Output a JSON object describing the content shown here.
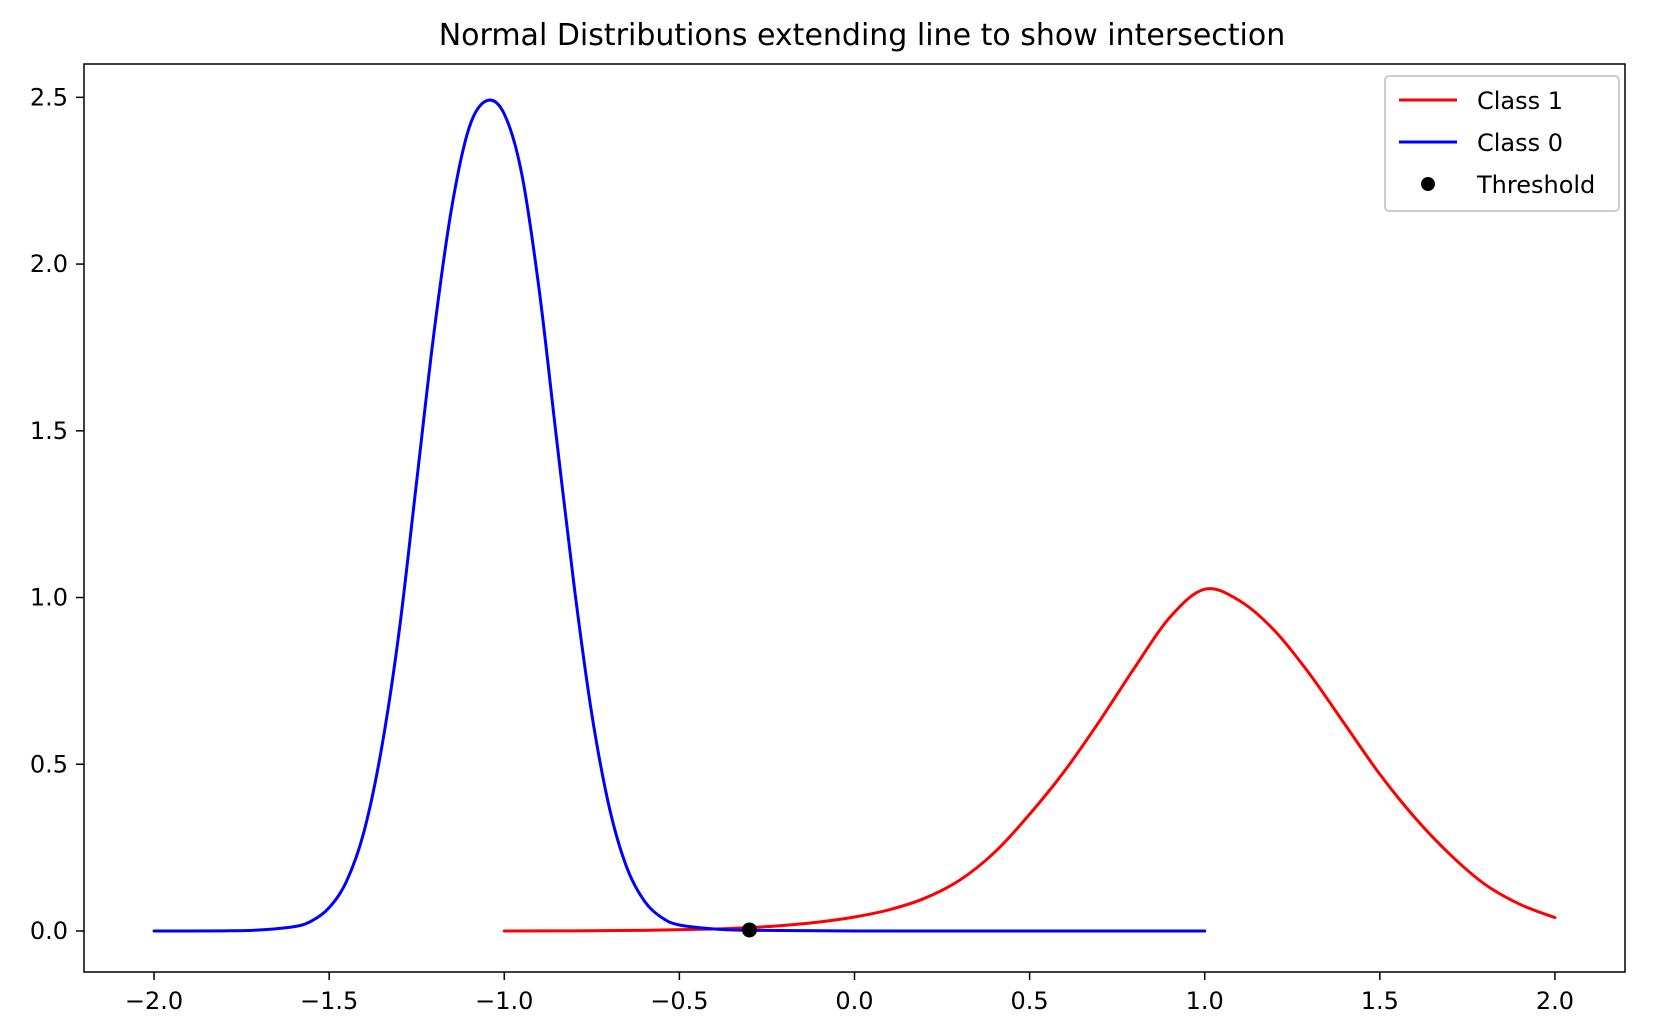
{
  "chart_data": {
    "type": "line",
    "title": "Normal Distributions extending line to show intersection",
    "xlabel": "",
    "ylabel": "",
    "xlim": [
      -2.2,
      2.2
    ],
    "ylim": [
      -0.123,
      2.6
    ],
    "x_ticks": [
      -2.0,
      -1.5,
      -1.0,
      -0.5,
      0.0,
      0.5,
      1.0,
      1.5,
      2.0
    ],
    "x_tick_labels": [
      "−2.0",
      "−1.5",
      "−1.0",
      "−0.5",
      "0.0",
      "0.5",
      "1.0",
      "1.5",
      "2.0"
    ],
    "y_ticks": [
      0.0,
      0.5,
      1.0,
      1.5,
      2.0,
      2.5
    ],
    "y_tick_labels": [
      "0.0",
      "0.5",
      "1.0",
      "1.5",
      "2.0",
      "2.5"
    ],
    "grid": false,
    "legend": {
      "position": "top-right",
      "entries": [
        "Class 1",
        "Class 0",
        "Threshold"
      ]
    },
    "series": [
      {
        "name": "Class 1",
        "kind": "line",
        "color": "#ff0000",
        "x": [
          -1.0,
          -0.8,
          -0.6,
          -0.4,
          -0.3,
          -0.2,
          -0.1,
          0.0,
          0.1,
          0.2,
          0.3,
          0.4,
          0.5,
          0.6,
          0.7,
          0.8,
          0.9,
          1.0,
          1.1,
          1.2,
          1.3,
          1.4,
          1.5,
          1.6,
          1.7,
          1.8,
          1.9,
          2.0
        ],
        "y": [
          0.0,
          0.0005,
          0.002,
          0.006,
          0.01,
          0.017,
          0.027,
          0.042,
          0.064,
          0.098,
          0.152,
          0.236,
          0.35,
          0.48,
          0.63,
          0.79,
          0.94,
          1.025,
          0.99,
          0.9,
          0.77,
          0.62,
          0.47,
          0.34,
          0.23,
          0.14,
          0.08,
          0.04
        ]
      },
      {
        "name": "Class 0",
        "kind": "line",
        "color": "#0000ff",
        "x": [
          -2.0,
          -1.8,
          -1.7,
          -1.6,
          -1.55,
          -1.5,
          -1.45,
          -1.4,
          -1.35,
          -1.3,
          -1.25,
          -1.2,
          -1.15,
          -1.1,
          -1.05,
          -1.0,
          -0.95,
          -0.9,
          -0.85,
          -0.8,
          -0.75,
          -0.7,
          -0.65,
          -0.6,
          -0.55,
          -0.5,
          -0.4,
          -0.3,
          0.0,
          0.5,
          1.0
        ],
        "y": [
          0.0,
          0.0005,
          0.003,
          0.013,
          0.03,
          0.07,
          0.15,
          0.3,
          0.55,
          0.9,
          1.35,
          1.8,
          2.17,
          2.41,
          2.49,
          2.45,
          2.27,
          1.92,
          1.47,
          1.03,
          0.65,
          0.37,
          0.19,
          0.09,
          0.04,
          0.018,
          0.006,
          0.002,
          0.0,
          0.0,
          0.0
        ]
      }
    ],
    "points": [
      {
        "name": "Threshold",
        "x": -0.3,
        "y": 0.003,
        "color": "#000000"
      }
    ]
  }
}
